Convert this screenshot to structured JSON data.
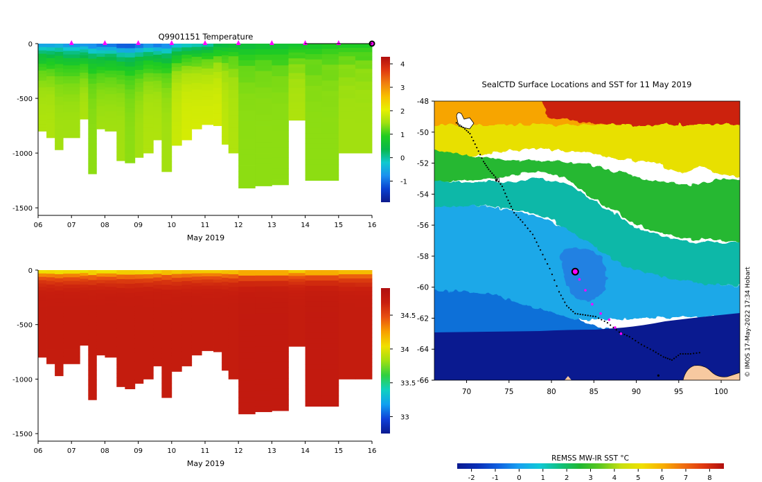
{
  "colors": {
    "temp_stops": [
      "#0d1a8c",
      "#0a40d0",
      "#1a90ef",
      "#10c8d0",
      "#08b84a",
      "#20cc20",
      "#a0e010",
      "#e8f000",
      "#f8c000",
      "#f08010",
      "#e03810",
      "#b00e0e"
    ],
    "sal_stops": [
      "#0a1a90",
      "#1040d8",
      "#10a0f0",
      "#10d0c0",
      "#30d040",
      "#a0e010",
      "#f0e000",
      "#f8a000",
      "#e85010",
      "#c81e0e",
      "#b01010"
    ],
    "sst_stops": [
      "#0a1a90",
      "#0a30b8",
      "#1060e0",
      "#18a0f0",
      "#10c8d8",
      "#10c080",
      "#20b830",
      "#60c820",
      "#c8e010",
      "#f0e000",
      "#f8b000",
      "#f07010",
      "#e03810",
      "#b00e0e"
    ],
    "track": "#000000",
    "profile_marker": "#ff00ff",
    "land": "#f7c9a0"
  },
  "chart_data": [
    {
      "id": "temperature-section",
      "type": "heatmap",
      "title": "Q9901151  Temperature",
      "xlabel": "May 2019",
      "ylabel": "",
      "x_ticks": [
        "06",
        "07",
        "08",
        "09",
        "10",
        "11",
        "12",
        "13",
        "14",
        "15",
        "16"
      ],
      "xlim": [
        6,
        16
      ],
      "ylim": [
        -1550,
        0
      ],
      "y_ticks": [
        0,
        -500,
        -1000,
        -1500
      ],
      "colorbar_ticks": [
        -1,
        0,
        1,
        2,
        3,
        4
      ],
      "colorbar_range": [
        -1.9,
        4.3
      ],
      "profile_marker_days": [
        7,
        8,
        9,
        10,
        11,
        12,
        13,
        14,
        15
      ],
      "latest_profile_day": 16,
      "profiles": [
        {
          "day": 6.0,
          "depth": 800,
          "surface": -0.8,
          "deep": 1.6
        },
        {
          "day": 6.25,
          "depth": 860,
          "surface": -0.8,
          "deep": 1.6
        },
        {
          "day": 6.5,
          "depth": 970,
          "surface": -0.7,
          "deep": 1.5
        },
        {
          "day": 6.75,
          "depth": 860,
          "surface": -0.9,
          "deep": 1.5
        },
        {
          "day": 7.25,
          "depth": 690,
          "surface": -0.9,
          "deep": 1.6
        },
        {
          "day": 7.5,
          "depth": 1190,
          "surface": -1.1,
          "deep": 1.4
        },
        {
          "day": 7.75,
          "depth": 780,
          "surface": -1.2,
          "deep": 1.5
        },
        {
          "day": 8.0,
          "depth": 800,
          "surface": -1.2,
          "deep": 1.5
        },
        {
          "day": 8.35,
          "depth": 1070,
          "surface": -1.5,
          "deep": 1.5
        },
        {
          "day": 8.6,
          "depth": 1090,
          "surface": -1.5,
          "deep": 1.4
        },
        {
          "day": 8.9,
          "depth": 1040,
          "surface": -1.3,
          "deep": 1.5
        },
        {
          "day": 9.15,
          "depth": 1000,
          "surface": -1.0,
          "deep": 1.6
        },
        {
          "day": 9.45,
          "depth": 880,
          "surface": -1.2,
          "deep": 1.6
        },
        {
          "day": 9.7,
          "depth": 1170,
          "surface": -1.1,
          "deep": 1.5
        },
        {
          "day": 10.0,
          "depth": 930,
          "surface": -0.6,
          "deep": 1.8
        },
        {
          "day": 10.3,
          "depth": 880,
          "surface": -0.4,
          "deep": 1.9
        },
        {
          "day": 10.6,
          "depth": 780,
          "surface": -0.3,
          "deep": 1.9
        },
        {
          "day": 10.9,
          "depth": 740,
          "surface": -0.2,
          "deep": 1.9
        },
        {
          "day": 11.25,
          "depth": 750,
          "surface": 0.2,
          "deep": 1.9
        },
        {
          "day": 11.5,
          "depth": 920,
          "surface": 0.3,
          "deep": 1.7
        },
        {
          "day": 11.7,
          "depth": 1000,
          "surface": 0.4,
          "deep": 1.6
        },
        {
          "day": 12.0,
          "depth": 1320,
          "surface": 0.4,
          "deep": 1.4
        },
        {
          "day": 12.5,
          "depth": 1300,
          "surface": 0.5,
          "deep": 1.4
        },
        {
          "day": 13.0,
          "depth": 1290,
          "surface": 0.5,
          "deep": 1.4
        },
        {
          "day": 13.5,
          "depth": 700,
          "surface": 0.6,
          "deep": 1.6
        },
        {
          "day": 14.0,
          "depth": 1250,
          "surface": 0.7,
          "deep": 1.4
        },
        {
          "day": 14.5,
          "depth": 1250,
          "surface": 0.8,
          "deep": 1.4
        },
        {
          "day": 15.0,
          "depth": 1000,
          "surface": 0.8,
          "deep": 1.5
        },
        {
          "day": 15.5,
          "depth": 1000,
          "surface": 0.8,
          "deep": 1.5
        }
      ]
    },
    {
      "id": "salinity-section",
      "type": "heatmap",
      "title": "",
      "xlabel": "May 2019",
      "ylabel": "",
      "x_ticks": [
        "06",
        "07",
        "08",
        "09",
        "10",
        "11",
        "12",
        "13",
        "14",
        "15",
        "16"
      ],
      "xlim": [
        6,
        16
      ],
      "ylim": [
        -1550,
        0
      ],
      "y_ticks": [
        0,
        -500,
        -1000,
        -1500
      ],
      "colorbar_ticks": [
        33,
        33.5,
        34,
        34.5
      ],
      "colorbar_range": [
        32.75,
        34.9
      ],
      "profiles": [
        {
          "day": 6.0,
          "depth": 800,
          "surface": 33.85,
          "deep": 34.72
        },
        {
          "day": 6.25,
          "depth": 860,
          "surface": 33.85,
          "deep": 34.72
        },
        {
          "day": 6.5,
          "depth": 970,
          "surface": 33.8,
          "deep": 34.72
        },
        {
          "day": 6.75,
          "depth": 860,
          "surface": 33.85,
          "deep": 34.72
        },
        {
          "day": 7.25,
          "depth": 690,
          "surface": 33.85,
          "deep": 34.72
        },
        {
          "day": 7.5,
          "depth": 1190,
          "surface": 33.8,
          "deep": 34.72
        },
        {
          "day": 7.75,
          "depth": 780,
          "surface": 33.85,
          "deep": 34.72
        },
        {
          "day": 8.0,
          "depth": 800,
          "surface": 33.85,
          "deep": 34.72
        },
        {
          "day": 8.35,
          "depth": 1070,
          "surface": 33.85,
          "deep": 34.72
        },
        {
          "day": 8.6,
          "depth": 1090,
          "surface": 33.85,
          "deep": 34.72
        },
        {
          "day": 8.9,
          "depth": 1040,
          "surface": 33.85,
          "deep": 34.72
        },
        {
          "day": 9.15,
          "depth": 1000,
          "surface": 33.85,
          "deep": 34.72
        },
        {
          "day": 9.45,
          "depth": 880,
          "surface": 33.9,
          "deep": 34.72
        },
        {
          "day": 9.7,
          "depth": 1170,
          "surface": 33.9,
          "deep": 34.72
        },
        {
          "day": 10.0,
          "depth": 930,
          "surface": 33.9,
          "deep": 34.72
        },
        {
          "day": 10.3,
          "depth": 880,
          "surface": 33.95,
          "deep": 34.72
        },
        {
          "day": 10.6,
          "depth": 780,
          "surface": 33.95,
          "deep": 34.72
        },
        {
          "day": 10.9,
          "depth": 740,
          "surface": 33.95,
          "deep": 34.72
        },
        {
          "day": 11.25,
          "depth": 750,
          "surface": 33.95,
          "deep": 34.72
        },
        {
          "day": 11.5,
          "depth": 920,
          "surface": 33.95,
          "deep": 34.72
        },
        {
          "day": 11.7,
          "depth": 1000,
          "surface": 33.95,
          "deep": 34.72
        },
        {
          "day": 12.0,
          "depth": 1320,
          "surface": 33.95,
          "deep": 34.74
        },
        {
          "day": 12.5,
          "depth": 1300,
          "surface": 33.95,
          "deep": 34.74
        },
        {
          "day": 13.0,
          "depth": 1290,
          "surface": 33.95,
          "deep": 34.74
        },
        {
          "day": 13.5,
          "depth": 700,
          "surface": 33.95,
          "deep": 34.72
        },
        {
          "day": 14.0,
          "depth": 1250,
          "surface": 33.95,
          "deep": 34.74
        },
        {
          "day": 14.5,
          "depth": 1250,
          "surface": 33.95,
          "deep": 34.74
        },
        {
          "day": 15.0,
          "depth": 1000,
          "surface": 33.95,
          "deep": 34.72
        },
        {
          "day": 15.5,
          "depth": 1000,
          "surface": 33.95,
          "deep": 34.72
        }
      ]
    },
    {
      "id": "sst-map",
      "type": "heatmap",
      "title": "SealCTD Surface Locations and SST for 11 May 2019",
      "xlabel": "",
      "ylabel": "",
      "xlim": [
        66.2,
        102.2
      ],
      "ylim": [
        -66,
        -48
      ],
      "x_ticks": [
        70,
        75,
        80,
        85,
        90,
        95,
        100
      ],
      "y_ticks": [
        -48,
        -50,
        -52,
        -54,
        -56,
        -58,
        -60,
        -62,
        -64,
        -66
      ],
      "colorbar_label": "REMSS MW-IR SST °C",
      "colorbar_ticks": [
        -2,
        -1,
        0,
        1,
        2,
        3,
        4,
        5,
        6,
        7,
        8
      ],
      "colorbar_range": [
        -2.6,
        8.6
      ],
      "credit": "© IMOS 17-May-2022 17:34 Hobart",
      "track": [
        [
          68.8,
          -49.4
        ],
        [
          69.6,
          -49.7
        ],
        [
          70.4,
          -50.1
        ],
        [
          71.2,
          -51.0
        ],
        [
          72.0,
          -51.9
        ],
        [
          72.6,
          -52.4
        ],
        [
          73.4,
          -52.9
        ],
        [
          74.2,
          -53.5
        ],
        [
          74.9,
          -54.4
        ],
        [
          75.6,
          -55.2
        ],
        [
          76.6,
          -55.8
        ],
        [
          77.8,
          -56.6
        ],
        [
          78.7,
          -57.6
        ],
        [
          79.8,
          -58.8
        ],
        [
          80.9,
          -60.3
        ],
        [
          81.8,
          -61.2
        ],
        [
          82.8,
          -61.7
        ],
        [
          84.0,
          -61.8
        ],
        [
          85.2,
          -61.9
        ],
        [
          86.6,
          -62.3
        ],
        [
          88.0,
          -62.9
        ],
        [
          89.2,
          -63.2
        ],
        [
          90.6,
          -63.7
        ],
        [
          92.0,
          -64.1
        ],
        [
          93.2,
          -64.5
        ],
        [
          94.2,
          -64.7
        ],
        [
          95.2,
          -64.3
        ],
        [
          96.4,
          -64.3
        ],
        [
          97.8,
          -64.2
        ]
      ],
      "profiles": [
        [
          83.3,
          -59.5
        ],
        [
          84.0,
          -60.2
        ],
        [
          84.8,
          -61.1
        ],
        [
          85.8,
          -61.7
        ],
        [
          86.8,
          -62.1
        ],
        [
          87.5,
          -62.6
        ],
        [
          88.2,
          -63.0
        ]
      ],
      "current_position": [
        82.8,
        -59.0
      ],
      "isolated_points": [
        [
          73.5,
          -53.1
        ],
        [
          92.6,
          -65.7
        ]
      ]
    }
  ]
}
